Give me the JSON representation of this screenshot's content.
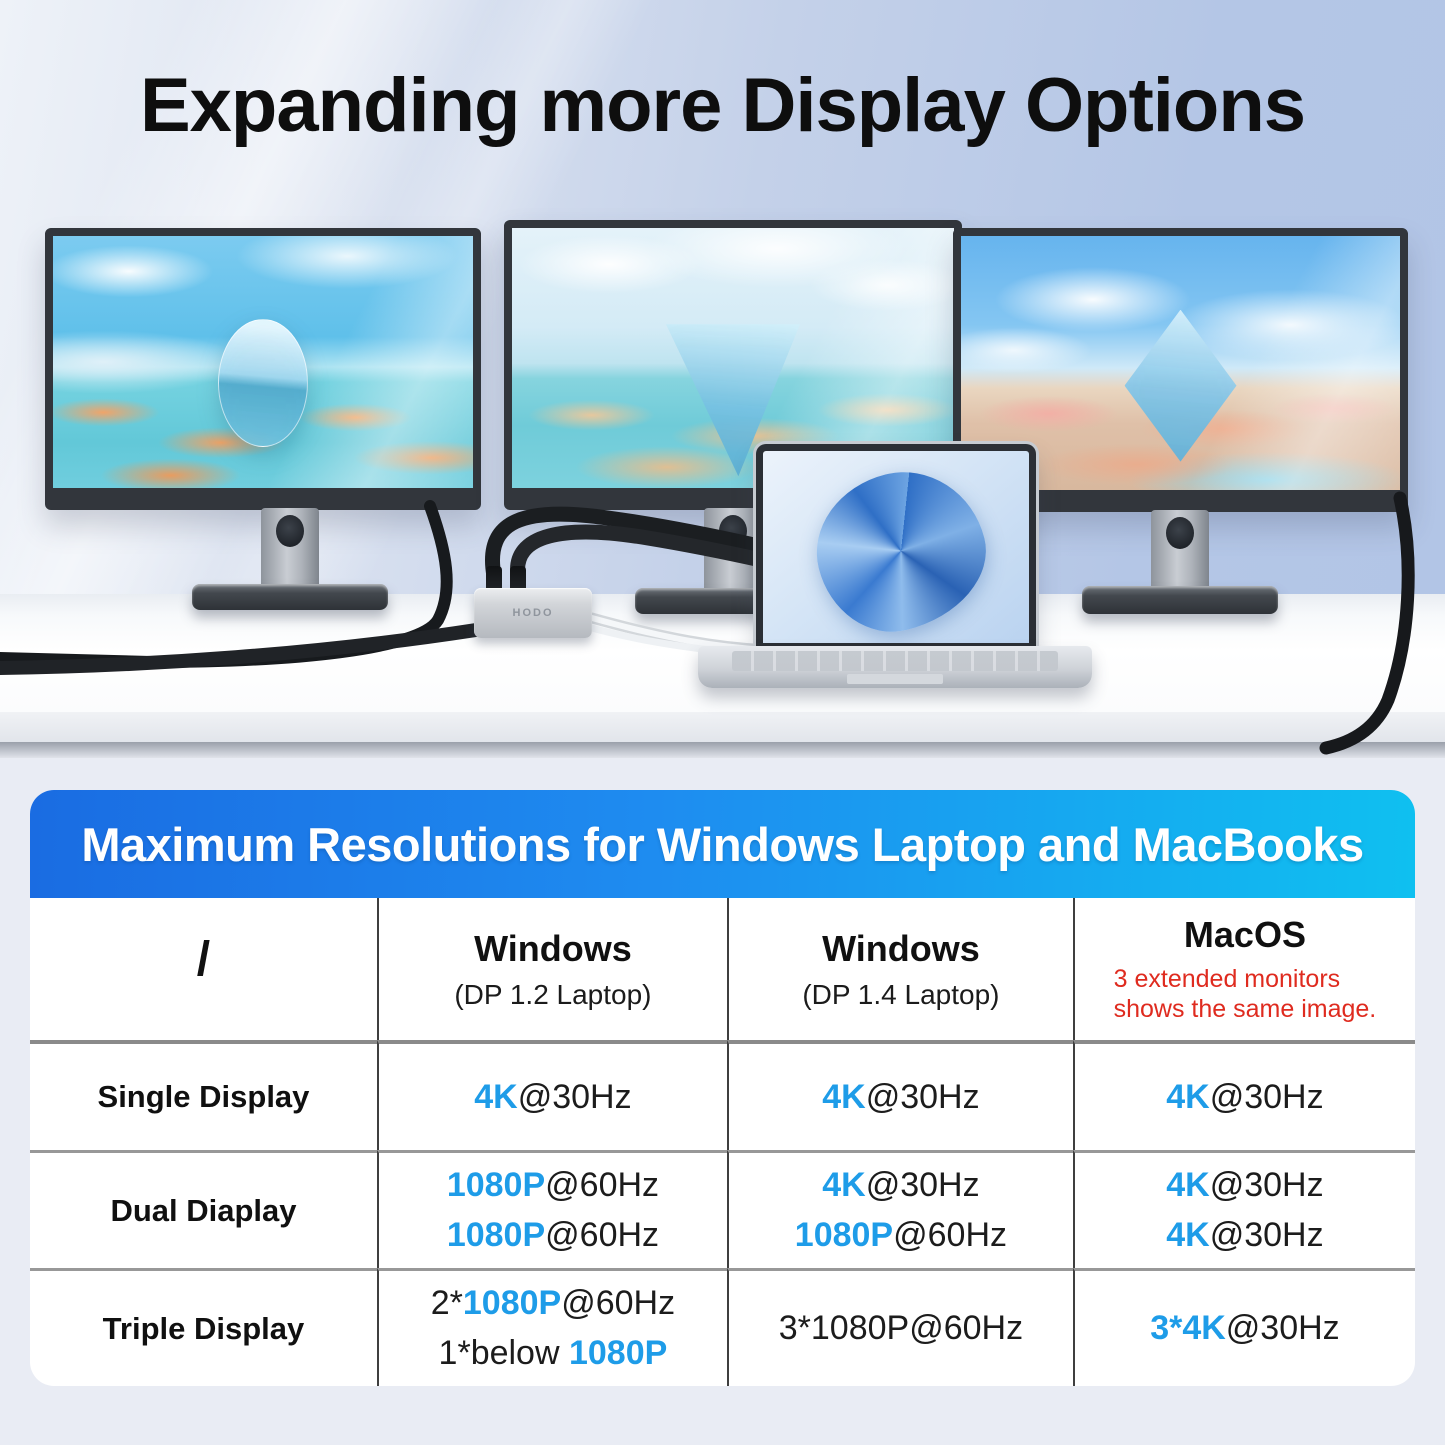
{
  "hero": {
    "title": "Expanding more Display Options",
    "hub_brand": "HODO"
  },
  "table": {
    "title": "Maximum Resolutions for Windows Laptop and MacBooks",
    "colors": {
      "accent": "#1e9ce8",
      "note": "#df2b1f",
      "banner-start": "#1a6ce2",
      "banner-end": "#0fc0f0"
    },
    "columns": [
      {
        "title": "/"
      },
      {
        "title": "Windows",
        "subtitle": "(DP 1.2 Laptop)"
      },
      {
        "title": "Windows",
        "subtitle": "(DP 1.4 Laptop)"
      },
      {
        "title": "MacOS",
        "note": [
          "3 extended monitors",
          "shows the same image."
        ]
      }
    ],
    "rows": [
      {
        "label": "Single Display",
        "cells": [
          [
            [
              {
                "t": "4K",
                "a": true
              },
              {
                "t": "@30Hz"
              }
            ]
          ],
          [
            [
              {
                "t": "4K",
                "a": true
              },
              {
                "t": "@30Hz"
              }
            ]
          ],
          [
            [
              {
                "t": "4K",
                "a": true
              },
              {
                "t": "@30Hz"
              }
            ]
          ]
        ]
      },
      {
        "label": "Dual Diaplay",
        "cells": [
          [
            [
              {
                "t": "1080P",
                "a": true
              },
              {
                "t": "@60Hz"
              }
            ],
            [
              {
                "t": "1080P",
                "a": true
              },
              {
                "t": "@60Hz"
              }
            ]
          ],
          [
            [
              {
                "t": "4K",
                "a": true
              },
              {
                "t": "@30Hz"
              }
            ],
            [
              {
                "t": "1080P",
                "a": true
              },
              {
                "t": "@60Hz"
              }
            ]
          ],
          [
            [
              {
                "t": "4K",
                "a": true
              },
              {
                "t": "@30Hz"
              }
            ],
            [
              {
                "t": "4K",
                "a": true
              },
              {
                "t": "@30Hz"
              }
            ]
          ]
        ]
      },
      {
        "label": "Triple Display",
        "cells": [
          [
            [
              {
                "t": "2*"
              },
              {
                "t": "1080P",
                "a": true
              },
              {
                "t": "@60Hz"
              }
            ],
            [
              {
                "t": "1*below "
              },
              {
                "t": "1080P",
                "a": true
              }
            ]
          ],
          [
            [
              {
                "t": "3*1080P@60Hz"
              }
            ]
          ],
          [
            [
              {
                "t": "3*4K",
                "a": true
              },
              {
                "t": "@30Hz"
              }
            ]
          ]
        ]
      }
    ]
  }
}
